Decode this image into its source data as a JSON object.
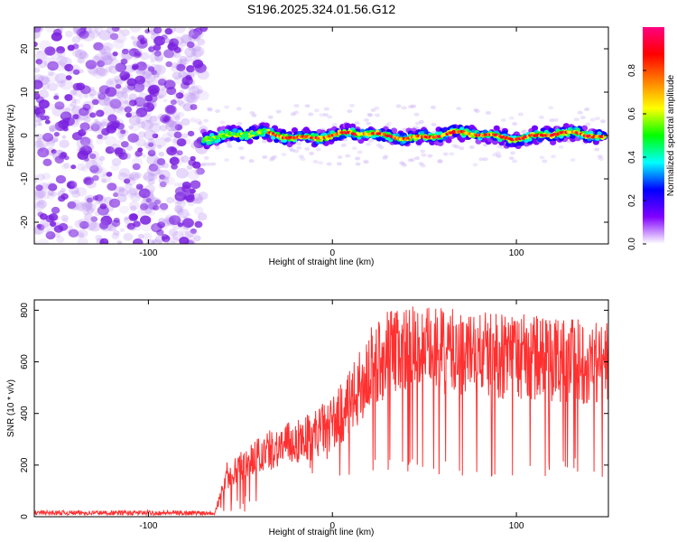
{
  "chart_data": [
    {
      "type": "heatmap",
      "title": "S196.2025.324.01.56.G12",
      "xlabel": "Height of straight line (km)",
      "ylabel": "Frequency (Hz)",
      "xlim": [
        -162,
        150
      ],
      "ylim": [
        -25,
        25
      ],
      "x_ticks": [
        -100,
        0,
        100
      ],
      "x_tick_labels": [
        "-100",
        "0",
        "100"
      ],
      "y_ticks": [
        -20,
        -10,
        0,
        10,
        20
      ],
      "y_tick_labels": [
        "-20",
        "-10",
        "0",
        "10",
        "20"
      ],
      "noise_region_x": [
        -162,
        -70
      ],
      "signal_band": {
        "x_start": -70,
        "x_end": 148,
        "center_frequency": 0,
        "half_width": 2
      },
      "colorbar": {
        "label": "Normalized spectral amplitude",
        "range": [
          0,
          1
        ],
        "ticks": [
          0.0,
          0.2,
          0.4,
          0.6,
          0.8
        ],
        "tick_labels": [
          "0.0",
          "0.2",
          "0.4",
          "0.6",
          "0.8"
        ],
        "colors": [
          "#ffffff",
          "#8000ff",
          "#0000ff",
          "#00ffff",
          "#00ff00",
          "#ffff00",
          "#ff8000",
          "#ff0000",
          "#ff0080"
        ]
      }
    },
    {
      "type": "line",
      "xlabel": "Height of straight line (km)",
      "ylabel": "SNR (10 * v/v)",
      "xlim": [
        -162,
        150
      ],
      "ylim": [
        0,
        840
      ],
      "x_ticks": [
        -100,
        0,
        100
      ],
      "x_tick_labels": [
        "-100",
        "0",
        "100"
      ],
      "y_ticks": [
        0,
        200,
        400,
        600,
        800
      ],
      "y_tick_labels": [
        "0",
        "200",
        "400",
        "600",
        "800"
      ],
      "color": "#ff3030",
      "series_envelope": [
        {
          "x": -162,
          "y": 15
        },
        {
          "x": -110,
          "y": 15
        },
        {
          "x": -64,
          "y": 15
        },
        {
          "x": -58,
          "y": 140
        },
        {
          "x": -50,
          "y": 200
        },
        {
          "x": -40,
          "y": 240
        },
        {
          "x": -30,
          "y": 270
        },
        {
          "x": -20,
          "y": 290
        },
        {
          "x": -10,
          "y": 320
        },
        {
          "x": 0,
          "y": 360
        },
        {
          "x": 10,
          "y": 440
        },
        {
          "x": 20,
          "y": 560
        },
        {
          "x": 30,
          "y": 640
        },
        {
          "x": 40,
          "y": 650
        },
        {
          "x": 60,
          "y": 640
        },
        {
          "x": 80,
          "y": 630
        },
        {
          "x": 100,
          "y": 620
        },
        {
          "x": 120,
          "y": 610
        },
        {
          "x": 150,
          "y": 600
        }
      ]
    }
  ]
}
